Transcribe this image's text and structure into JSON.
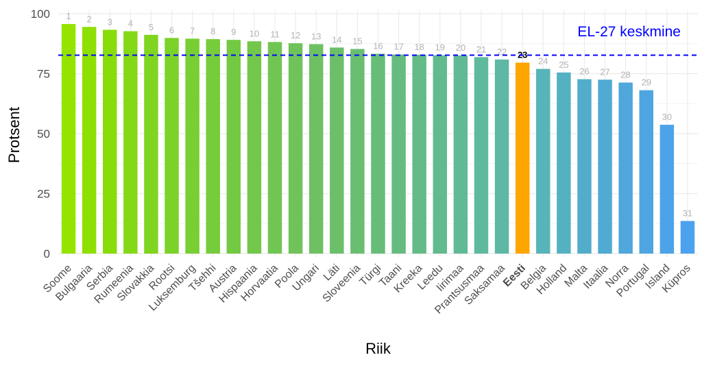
{
  "chart_data": {
    "type": "bar",
    "xlabel": "Riik",
    "ylabel": "Protsent",
    "ylim": [
      0,
      100
    ],
    "yticks": [
      0,
      25,
      50,
      75,
      100
    ],
    "grid": true,
    "categories": [
      "Soome",
      "Bulgaaria",
      "Serbia",
      "Rumeenia",
      "Slovakkia",
      "Rootsi",
      "Luksemburg",
      "Tšehhi",
      "Austria",
      "Hispaania",
      "Horvaatia",
      "Poola",
      "Ungari",
      "Läti",
      "Sloveenia",
      "Türgi",
      "Taani",
      "Kreeka",
      "Leedu",
      "Iirimaa",
      "Prantsusmaa",
      "Saksamaa",
      "Eesti",
      "Belgia",
      "Holland",
      "Malta",
      "Itaalia",
      "Norra",
      "Portugal",
      "Island",
      "Küpros"
    ],
    "ranks": [
      "1",
      "2",
      "3",
      "4",
      "5",
      "6",
      "7",
      "8",
      "9",
      "10",
      "11",
      "12",
      "13",
      "14",
      "15",
      "16",
      "17",
      "18",
      "19",
      "20",
      "21",
      "22",
      "23",
      "24",
      "25",
      "26",
      "27",
      "28",
      "29",
      "30",
      "31"
    ],
    "values": [
      95.7,
      94.5,
      93.3,
      92.7,
      91.2,
      89.9,
      89.6,
      89.4,
      89.1,
      88.5,
      88.2,
      87.7,
      87.3,
      85.9,
      85.3,
      83.3,
      83.0,
      82.9,
      82.7,
      82.6,
      81.9,
      80.9,
      79.6,
      77.0,
      75.5,
      72.7,
      72.5,
      71.3,
      68.1,
      53.7,
      13.6
    ],
    "highlight": "Eesti",
    "colors": [
      "#95e400",
      "#8ee002",
      "#88dc0a",
      "#83d916",
      "#7fd51f",
      "#7bd229",
      "#78cf33",
      "#76cc3b",
      "#74c943",
      "#73c74b",
      "#71c552",
      "#6fc35a",
      "#6dc162",
      "#6bbf69",
      "#69be70",
      "#67bd78",
      "#66bc80",
      "#64bb87",
      "#62ba8f",
      "#61ba96",
      "#5fb99d",
      "#5eb8a4",
      "#ffa500",
      "#57b4b8",
      "#54b1c1",
      "#52adca",
      "#50aad3",
      "#4fa7db",
      "#4ea5e2",
      "#4da3e9",
      "#4ca2ef"
    ],
    "reference_line": {
      "label": "EL-27 keskmine",
      "value": 82.7,
      "color": "#0000ff"
    }
  }
}
